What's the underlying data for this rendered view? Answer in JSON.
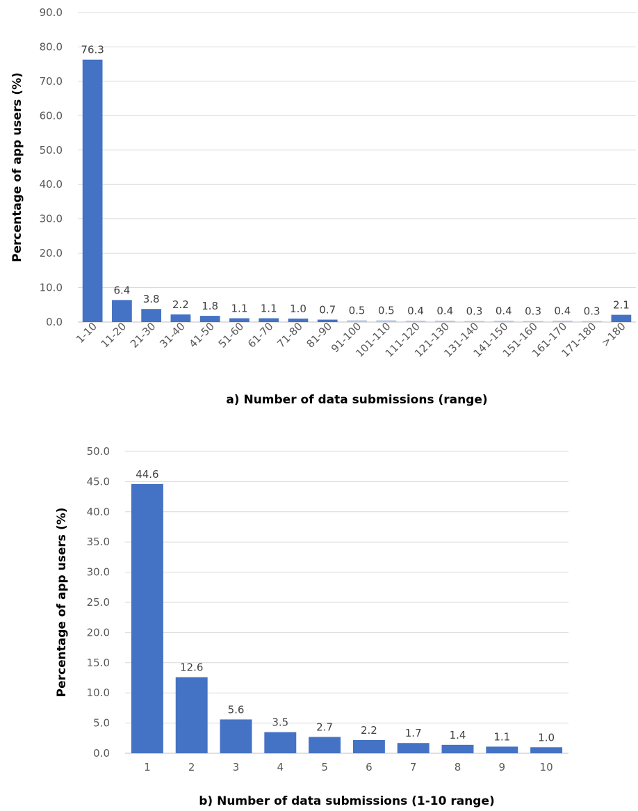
{
  "chart_data": [
    {
      "type": "bar",
      "ylabel": "Percentage of app users (%)",
      "xlabel": "a) Number of data submissions (range)",
      "ylim": [
        0,
        90
      ],
      "ytick_step": 10,
      "ytick_labels": [
        "0.0",
        "10.0",
        "20.0",
        "30.0",
        "40.0",
        "50.0",
        "60.0",
        "70.0",
        "80.0",
        "90.0"
      ],
      "categories": [
        "1-10",
        "11-20",
        "21-30",
        "31-40",
        "41-50",
        "51-60",
        "61-70",
        "71-80",
        "81-90",
        "91-100",
        "101-110",
        "111-120",
        "121-130",
        "131-140",
        "141-150",
        "151-160",
        "161-170",
        "171-180",
        ">180"
      ],
      "values": [
        76.3,
        6.4,
        3.8,
        2.2,
        1.8,
        1.1,
        1.1,
        1.0,
        0.7,
        0.5,
        0.5,
        0.4,
        0.4,
        0.3,
        0.4,
        0.3,
        0.4,
        0.3,
        2.1
      ],
      "value_labels": [
        "76.3",
        "6.4",
        "3.8",
        "2.2",
        "1.8",
        "1.1",
        "1.1",
        "1.0",
        "0.7",
        "0.5",
        "0.5",
        "0.4",
        "0.4",
        "0.3",
        "0.4",
        "0.3",
        "0.4",
        "0.3",
        "2.1"
      ],
      "bar_color": "#4472c4",
      "faded_bar_color": "#b4c7e7",
      "grid": true
    },
    {
      "type": "bar",
      "ylabel": "Percentage of app users (%)",
      "xlabel": "b) Number of data submissions (1-10 range)",
      "ylim": [
        0,
        50
      ],
      "ytick_step": 5,
      "ytick_labels": [
        "0.0",
        "5.0",
        "10.0",
        "15.0",
        "20.0",
        "25.0",
        "30.0",
        "35.0",
        "40.0",
        "45.0",
        "50.0"
      ],
      "categories": [
        "1",
        "2",
        "3",
        "4",
        "5",
        "6",
        "7",
        "8",
        "9",
        "10"
      ],
      "values": [
        44.6,
        12.6,
        5.6,
        3.5,
        2.7,
        2.2,
        1.7,
        1.4,
        1.1,
        1.0
      ],
      "value_labels": [
        "44.6",
        "12.6",
        "5.6",
        "3.5",
        "2.7",
        "2.2",
        "1.7",
        "1.4",
        "1.1",
        "1.0"
      ],
      "bar_color": "#4472c4",
      "grid": true
    }
  ]
}
